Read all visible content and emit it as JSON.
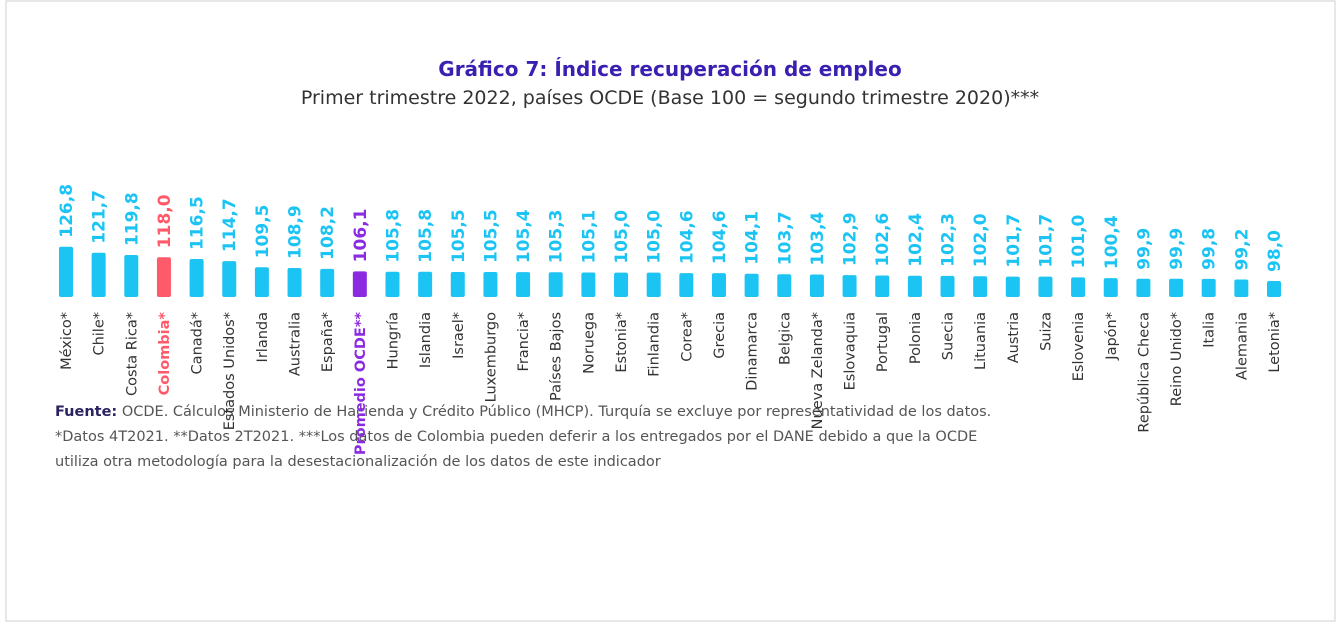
{
  "chart_data": {
    "type": "bar",
    "title": "Gráfico 7: Índice recuperación de empleo",
    "subtitle": "Primer trimestre 2022, países OCDE (Base 100 = segundo trimestre 2020)***",
    "categories": [
      "México*",
      "Chile*",
      "Costa Rica*",
      "Colombia*",
      "Canadá*",
      "Estados Unidos*",
      "Irlanda",
      "Australia",
      "España*",
      "Promedio OCDE**",
      "Hungría",
      "Islandia",
      "Israel*",
      "Luxemburgo",
      "Francia*",
      "Países Bajos",
      "Noruega",
      "Estonia*",
      "Finlandia",
      "Corea*",
      "Grecia",
      "Dinamarca",
      "Belgica",
      "Nueva Zelanda*",
      "Eslovaquia",
      "Portugal",
      "Polonia",
      "Suecia",
      "Lituania",
      "Austria",
      "Suiza",
      "Eslovenia",
      "Japón*",
      "República Checa",
      "Reino Unido*",
      "Italia",
      "Alemania",
      "Letonia*"
    ],
    "values": [
      126.8,
      121.7,
      119.8,
      118.0,
      116.5,
      114.7,
      109.5,
      108.9,
      108.2,
      106.1,
      105.8,
      105.8,
      105.5,
      105.5,
      105.4,
      105.3,
      105.1,
      105.0,
      105.0,
      104.6,
      104.6,
      104.1,
      103.7,
      103.4,
      102.9,
      102.6,
      102.4,
      102.3,
      102.0,
      101.7,
      101.7,
      101.0,
      100.4,
      99.9,
      99.9,
      99.8,
      99.2,
      98.0
    ],
    "value_labels": [
      "126,8",
      "121,7",
      "119,8",
      "118,0",
      "116,5",
      "114,7",
      "109,5",
      "108,9",
      "108,2",
      "106,1",
      "105,8",
      "105,8",
      "105,5",
      "105,5",
      "105,4",
      "105,3",
      "105,1",
      "105,0",
      "105,0",
      "104,6",
      "104,6",
      "104,1",
      "103,7",
      "103,4",
      "102,9",
      "102,6",
      "102,4",
      "102,3",
      "102,0",
      "101,7",
      "101,7",
      "101,0",
      "100,4",
      "99,9",
      "99,9",
      "99,8",
      "99,2",
      "98,0"
    ],
    "color": "#1cc4f4",
    "highlights": [
      {
        "index": 3,
        "color": "#ff5a6a"
      },
      {
        "index": 9,
        "color": "#8a2be2"
      }
    ],
    "ylim": [
      84.5,
      135
    ],
    "source_label": "Fuente:",
    "notes": [
      " OCDE. Cálculos Ministerio de Hacienda y Crédito Público (MHCP). Turquía se excluye por representatividad de los datos.",
      "*Datos 4T2021. **Datos 2T2021. ***Los datos de Colombia pueden deferir a los entregados por el DANE debido a que la OCDE",
      "utiliza otra metodología para la desestacionalización de los datos de este indicador"
    ]
  }
}
